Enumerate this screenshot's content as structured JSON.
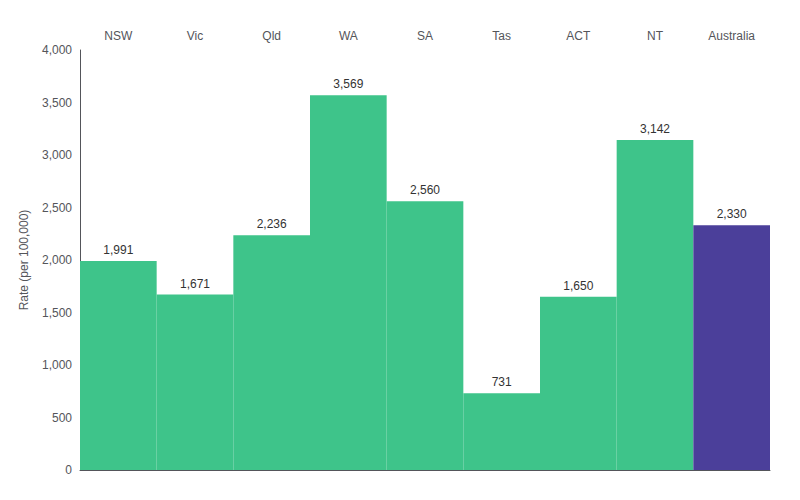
{
  "chart_data": {
    "type": "bar",
    "categories": [
      "NSW",
      "Vic",
      "Qld",
      "WA",
      "SA",
      "Tas",
      "ACT",
      "NT",
      "Australia"
    ],
    "values": [
      1991,
      1671,
      2236,
      3569,
      2560,
      731,
      1650,
      3142,
      2330
    ],
    "value_labels": [
      "1,991",
      "1,671",
      "2,236",
      "3,569",
      "2,560",
      "731",
      "1,650",
      "3,142",
      "2,330"
    ],
    "data_labels": true,
    "colors": [
      "#3ec48a",
      "#3ec48a",
      "#3ec48a",
      "#3ec48a",
      "#3ec48a",
      "#3ec48a",
      "#3ec48a",
      "#3ec48a",
      "#4b3f9a"
    ],
    "ylabel": "Rate (per 100,000)",
    "ylim": [
      0,
      4000
    ],
    "yticks": [
      0,
      500,
      1000,
      1500,
      2000,
      2500,
      3000,
      3500,
      4000
    ],
    "grid": false
  }
}
